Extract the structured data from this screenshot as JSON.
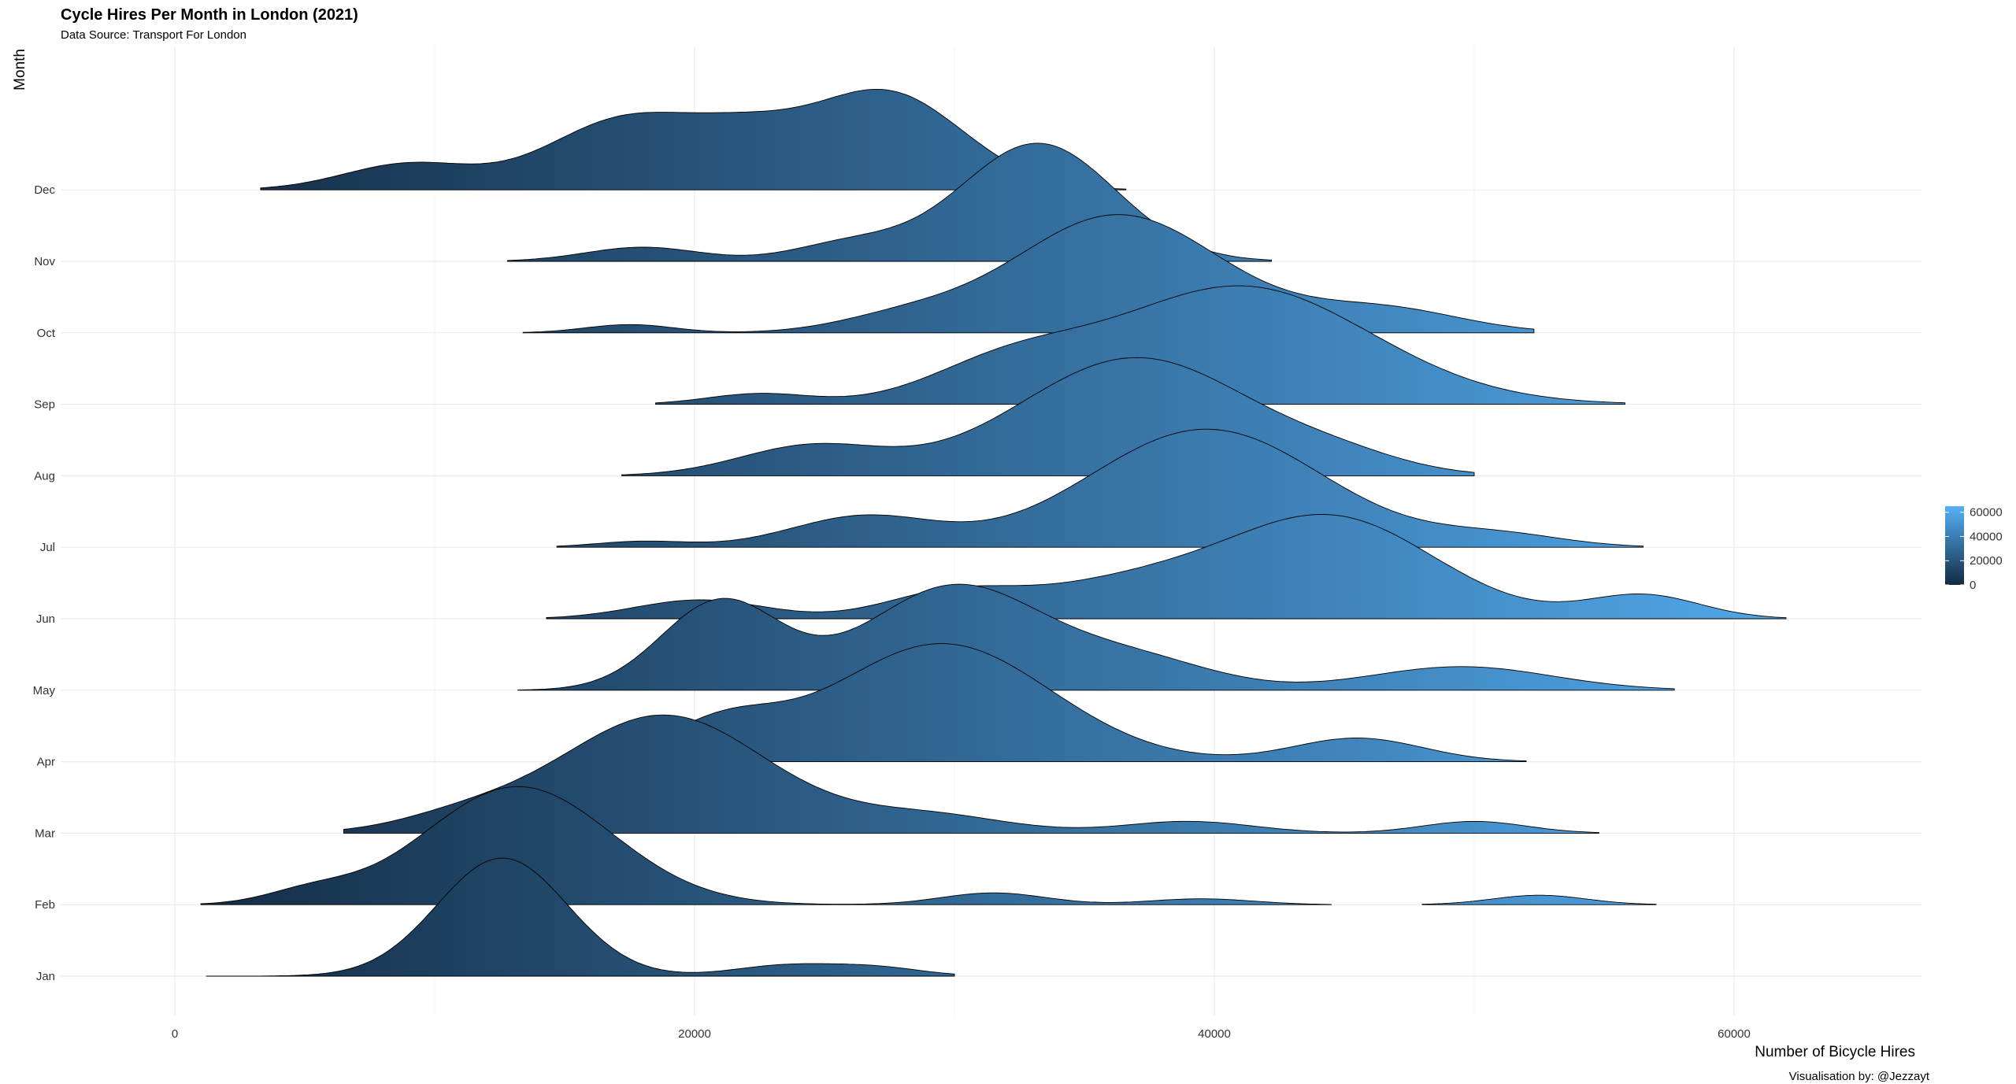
{
  "header": {
    "title": "Cycle Hires Per Month in London (2021)",
    "subtitle": "Data Source: Transport For London",
    "caption": "Visualisation by: @Jezzayt"
  },
  "chart_data": {
    "type": "ridgeline",
    "xlabel": "Number of Bicycle Hires",
    "ylabel": "Month",
    "xlim": [
      -4000,
      68000
    ],
    "x_ticks": [
      0,
      20000,
      40000,
      60000
    ],
    "x_tick_labels": [
      "0",
      "20000",
      "40000",
      "60000"
    ],
    "grid": true,
    "legend_position": "right",
    "fill_scale": {
      "low": "#132B43",
      "high": "#56B1F7",
      "breaks": [
        0,
        20000,
        40000,
        60000
      ],
      "break_labels": [
        "0",
        "20000",
        "40000",
        "60000"
      ]
    },
    "categories": [
      "Jan",
      "Feb",
      "Mar",
      "Apr",
      "May",
      "Jun",
      "Jul",
      "Aug",
      "Sep",
      "Oct",
      "Nov",
      "Dec"
    ],
    "series": [
      {
        "name": "Jan",
        "range": [
          1200,
          30000
        ],
        "components": [
          [
            12600,
            2500,
            1.0
          ],
          [
            23500,
            2000,
            0.09
          ],
          [
            27000,
            1800,
            0.07
          ]
        ]
      },
      {
        "name": "Feb",
        "range": [
          1000,
          57000
        ],
        "components": [
          [
            13200,
            3600,
            1.0
          ],
          [
            5200,
            1700,
            0.1
          ],
          [
            31500,
            2000,
            0.1
          ],
          [
            39500,
            2000,
            0.05
          ],
          [
            52500,
            1800,
            0.08
          ]
        ],
        "gap": [
          44500,
          48000
        ]
      },
      {
        "name": "Mar",
        "range": [
          6500,
          54800
        ],
        "components": [
          [
            18800,
            4000,
            1.0
          ],
          [
            11000,
            2500,
            0.12
          ],
          [
            29000,
            3000,
            0.15
          ],
          [
            39000,
            2500,
            0.1
          ],
          [
            50000,
            2000,
            0.1
          ]
        ]
      },
      {
        "name": "Apr",
        "range": [
          15500,
          52000
        ],
        "components": [
          [
            29500,
            4200,
            1.0
          ],
          [
            21000,
            2200,
            0.3
          ],
          [
            45500,
            2500,
            0.2
          ]
        ]
      },
      {
        "name": "May",
        "range": [
          13200,
          57700
        ],
        "components": [
          [
            21000,
            2300,
            0.75
          ],
          [
            30000,
            3400,
            0.88
          ],
          [
            37000,
            3000,
            0.25
          ],
          [
            49500,
            3500,
            0.2
          ]
        ]
      },
      {
        "name": "Jun",
        "range": [
          14300,
          62000
        ],
        "components": [
          [
            20200,
            2500,
            0.16
          ],
          [
            29800,
            2500,
            0.2
          ],
          [
            36500,
            3800,
            0.28
          ],
          [
            44500,
            4000,
            0.85
          ],
          [
            56500,
            2200,
            0.2
          ]
        ]
      },
      {
        "name": "Jul",
        "range": [
          14700,
          56500
        ],
        "components": [
          [
            26500,
            2800,
            0.26
          ],
          [
            18000,
            1800,
            0.05
          ],
          [
            39700,
            4500,
            1.0
          ],
          [
            51000,
            2500,
            0.1
          ]
        ]
      },
      {
        "name": "Aug",
        "range": [
          17200,
          50000
        ],
        "components": [
          [
            37000,
            4500,
            1.0
          ],
          [
            24500,
            2800,
            0.25
          ],
          [
            45000,
            2500,
            0.1
          ]
        ]
      },
      {
        "name": "Sep",
        "range": [
          18500,
          55800
        ],
        "components": [
          [
            41000,
            5000,
            1.0
          ],
          [
            22500,
            2000,
            0.09
          ],
          [
            32000,
            3000,
            0.3
          ]
        ]
      },
      {
        "name": "Oct",
        "range": [
          13400,
          52300
        ],
        "components": [
          [
            36300,
            4000,
            1.0
          ],
          [
            17500,
            1700,
            0.07
          ],
          [
            28000,
            2500,
            0.12
          ],
          [
            46500,
            3000,
            0.2
          ]
        ]
      },
      {
        "name": "Nov",
        "range": [
          12800,
          42200
        ],
        "components": [
          [
            33200,
            3000,
            1.0
          ],
          [
            18000,
            2200,
            0.12
          ],
          [
            26000,
            2200,
            0.15
          ]
        ]
      },
      {
        "name": "Dec",
        "range": [
          3300,
          36600
        ],
        "components": [
          [
            27300,
            3000,
            0.83
          ],
          [
            17400,
            3000,
            0.6
          ],
          [
            22000,
            2200,
            0.3
          ],
          [
            9000,
            2500,
            0.22
          ]
        ]
      }
    ]
  }
}
